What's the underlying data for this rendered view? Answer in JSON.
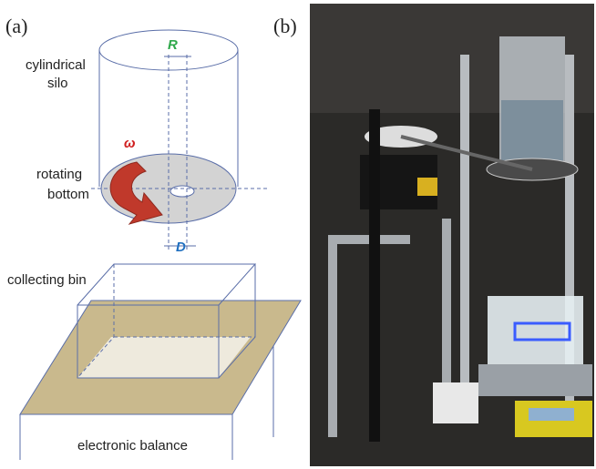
{
  "panels": [
    {
      "label": "(a)",
      "annotations": {
        "silo": [
          "cylindrical",
          "silo"
        ],
        "radius": "R",
        "omega": "ω",
        "bottom": [
          "rotating",
          "bottom"
        ],
        "diameter": "D",
        "bin": "collecting bin",
        "balance": "electronic balance"
      }
    },
    {
      "label": "(b)"
    }
  ]
}
